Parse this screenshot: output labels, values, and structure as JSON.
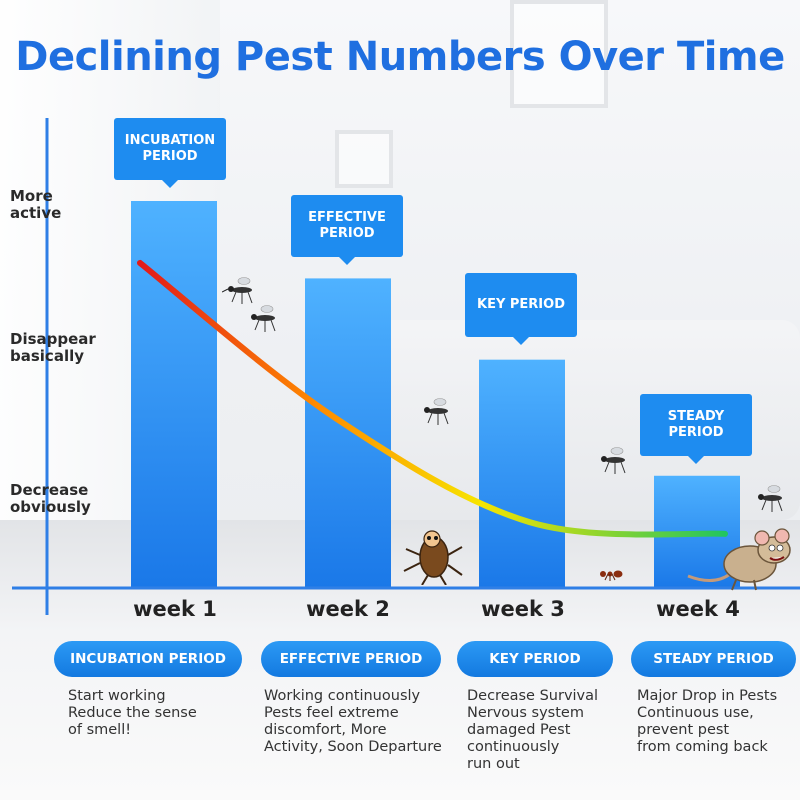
{
  "title": "Declining Pest Numbers Over Time",
  "y_axis_labels": [
    {
      "text": [
        "More",
        "active"
      ]
    },
    {
      "text": [
        "Disappear",
        "basically"
      ]
    },
    {
      "text": [
        "Decrease",
        "obviously"
      ]
    }
  ],
  "period_callouts": [
    {
      "lines": [
        "INCUBATION",
        "PERIOD"
      ]
    },
    {
      "lines": [
        "EFFECTIVE",
        "PERIOD"
      ]
    },
    {
      "lines": [
        "KEY PERIOD"
      ]
    },
    {
      "lines": [
        "STEADY",
        "PERIOD"
      ]
    }
  ],
  "pills": [
    "INCUBATION PERIOD",
    "EFFECTIVE PERIOD",
    "KEY PERIOD",
    "STEADY PERIOD"
  ],
  "descriptions": [
    [
      "Start working",
      "Reduce the sense",
      "of smell!"
    ],
    [
      "Working continuously",
      "Pests feel extreme",
      "discomfort, More",
      "Activity, Soon Departure"
    ],
    [
      "Decrease Survival",
      "Nervous system",
      "damaged Pest",
      "continuously",
      "run out"
    ],
    [
      "Major Drop in Pests",
      "Continuous use,",
      "prevent pest",
      "from coming back"
    ]
  ],
  "colors": {
    "title": "#1f6fe0",
    "bar_top": "#4fb2ff",
    "bar_bottom": "#1a78e8",
    "callout": "#1e8cf0",
    "axis": "#2f7fe6",
    "curve_start": "#e21a1a",
    "curve_mid": "#f7e400",
    "curve_end": "#22c55e"
  },
  "icons": [
    "mosquito-icon",
    "cockroach-icon",
    "ant-icon",
    "rat-icon"
  ],
  "chart_data": {
    "type": "bar",
    "categories": [
      "week 1",
      "week 2",
      "week 3",
      "week 4"
    ],
    "values": [
      100,
      80,
      59,
      29
    ],
    "ylim": [
      0,
      100
    ],
    "trend_curve": {
      "x": [
        1,
        2,
        3,
        4
      ],
      "y": [
        84,
        44,
        17,
        14
      ]
    },
    "title": "Declining Pest Numbers Over Time",
    "xlabel": "",
    "ylabel": ""
  }
}
